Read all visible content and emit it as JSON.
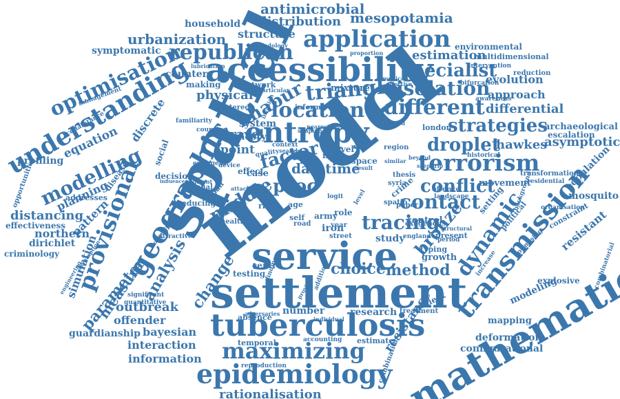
{
  "colors": {
    "word": "#3b77ad",
    "background": "#ffffff"
  },
  "words": [
    {
      "text": "model"
    },
    {
      "text": "spatial"
    },
    {
      "text": "settlement"
    },
    {
      "text": "mathematical"
    },
    {
      "text": "service"
    },
    {
      "text": "tuberculosis"
    },
    {
      "text": "accessibility"
    },
    {
      "text": "epidemiology"
    },
    {
      "text": "geographic"
    },
    {
      "text": "entropy"
    },
    {
      "text": "maximizing"
    },
    {
      "text": "application"
    },
    {
      "text": "transmission"
    },
    {
      "text": "understanding"
    },
    {
      "text": "terrorism"
    },
    {
      "text": "provisional"
    },
    {
      "text": "republican"
    },
    {
      "text": "triangle"
    },
    {
      "text": "location"
    },
    {
      "text": "different"
    },
    {
      "text": "dynamic"
    },
    {
      "text": "optimisation"
    },
    {
      "text": "modelling"
    },
    {
      "text": "tracing"
    },
    {
      "text": "contact"
    },
    {
      "text": "isolation"
    },
    {
      "text": "specialist"
    },
    {
      "text": "strategies"
    },
    {
      "text": "droplet"
    },
    {
      "text": "conflict"
    },
    {
      "text": "factor"
    },
    {
      "text": "khabur"
    },
    {
      "text": "middle"
    },
    {
      "text": "proc"
    },
    {
      "text": "datatime"
    },
    {
      "text": "bronze"
    },
    {
      "text": "parameter"
    },
    {
      "text": "analysis"
    },
    {
      "text": "measure"
    },
    {
      "text": "change"
    },
    {
      "text": "choice"
    },
    {
      "text": "method"
    },
    {
      "text": "distribution"
    },
    {
      "text": "antimicrobial"
    },
    {
      "text": "mesopotamia"
    },
    {
      "text": "urbanization"
    },
    {
      "text": "structure"
    },
    {
      "text": "estimation"
    },
    {
      "text": "household"
    },
    {
      "text": "symptomatic"
    },
    {
      "text": "environmental"
    },
    {
      "text": "multidimensional"
    },
    {
      "text": "physical"
    },
    {
      "text": "travel"
    },
    {
      "text": "point"
    },
    {
      "text": "differential"
    },
    {
      "text": "archaeological"
    },
    {
      "text": "asymptotic"
    },
    {
      "text": "hawkes"
    },
    {
      "text": "escalation"
    },
    {
      "text": "evolution"
    },
    {
      "text": "approach"
    },
    {
      "text": "distancing"
    },
    {
      "text": "planning"
    },
    {
      "text": "pattern"
    },
    {
      "text": "northern"
    },
    {
      "text": "effectiveness"
    },
    {
      "text": "dirichlet"
    },
    {
      "text": "criminology"
    },
    {
      "text": "simulation"
    },
    {
      "text": "outbreak"
    },
    {
      "text": "offender"
    },
    {
      "text": "guardianship"
    },
    {
      "text": "bayesian"
    },
    {
      "text": "interaction"
    },
    {
      "text": "information"
    },
    {
      "text": "rationalisation"
    },
    {
      "text": "configurational"
    },
    {
      "text": "deformation"
    },
    {
      "text": "mapping"
    },
    {
      "text": "modeling"
    },
    {
      "text": "explosive"
    },
    {
      "text": "resistant"
    },
    {
      "text": "resistance"
    },
    {
      "text": "mosquito"
    },
    {
      "text": "population"
    },
    {
      "text": "growth"
    },
    {
      "text": "study"
    },
    {
      "text": "testing"
    },
    {
      "text": "number"
    },
    {
      "text": "research"
    },
    {
      "text": "centre"
    },
    {
      "text": "iron"
    },
    {
      "text": "army"
    },
    {
      "text": "irish"
    },
    {
      "text": "case"
    },
    {
      "text": "equation"
    },
    {
      "text": "discrete"
    },
    {
      "text": "profiling"
    },
    {
      "text": "counter"
    },
    {
      "text": "making"
    },
    {
      "text": "network"
    },
    {
      "text": "mixture"
    },
    {
      "text": "system"
    },
    {
      "text": "theory"
    },
    {
      "text": "more"
    },
    {
      "text": "control"
    },
    {
      "text": "setting"
    },
    {
      "text": "movement"
    },
    {
      "text": "transformation"
    },
    {
      "text": "present"
    },
    {
      "text": "period"
    },
    {
      "text": "typing"
    },
    {
      "text": "temporal"
    },
    {
      "text": "estimate"
    },
    {
      "text": "patient"
    },
    {
      "text": "treatment"
    },
    {
      "text": "absence"
    },
    {
      "text": "adversaries"
    },
    {
      "text": "accounting"
    },
    {
      "text": "reproduction"
    },
    {
      "text": "combination"
    },
    {
      "text": "decision"
    },
    {
      "text": "social"
    },
    {
      "text": "disease"
    },
    {
      "text": "addresses"
    },
    {
      "text": "reducing"
    },
    {
      "text": "urban"
    },
    {
      "text": "risk"
    },
    {
      "text": "age"
    },
    {
      "text": "health"
    },
    {
      "text": "role"
    },
    {
      "text": "paper"
    },
    {
      "text": "year"
    },
    {
      "text": "street"
    },
    {
      "text": "england"
    },
    {
      "text": "london"
    },
    {
      "text": "region"
    },
    {
      "text": "thesis"
    },
    {
      "text": "syria"
    },
    {
      "text": "crime"
    },
    {
      "text": "novel"
    },
    {
      "text": "inform"
    },
    {
      "text": "effect"
    },
    {
      "text": "clinic"
    },
    {
      "text": "attractive"
    },
    {
      "text": "opportunities"
    },
    {
      "text": "management"
    },
    {
      "text": "acquaintance"
    },
    {
      "text": "familiarity"
    },
    {
      "text": "lubrication"
    },
    {
      "text": "methodology"
    },
    {
      "text": "proportion"
    },
    {
      "text": "intervention"
    },
    {
      "text": "bifurcation"
    },
    {
      "text": "reduction"
    },
    {
      "text": "awareness"
    },
    {
      "text": "clustered"
    },
    {
      "text": "particular"
    },
    {
      "text": "observed"
    },
    {
      "text": "historical"
    },
    {
      "text": "residential"
    },
    {
      "text": "organisation"
    },
    {
      "text": "constraint"
    },
    {
      "text": "combinatorial"
    },
    {
      "text": "political"
    },
    {
      "text": "optimising"
    },
    {
      "text": "increase"
    },
    {
      "text": "significant"
    },
    {
      "text": "quantitative"
    },
    {
      "text": "engineering"
    },
    {
      "text": "assumption"
    },
    {
      "text": "uncertainty"
    },
    {
      "text": "counting"
    },
    {
      "text": "segment"
    },
    {
      "text": "manual"
    },
    {
      "text": "influence"
    },
    {
      "text": "emergent"
    },
    {
      "text": "device"
    },
    {
      "text": "quality"
    },
    {
      "text": "search"
    },
    {
      "text": "space"
    },
    {
      "text": "result"
    },
    {
      "text": "exogenous"
    },
    {
      "text": "structural"
    },
    {
      "text": "offence"
    },
    {
      "text": "landscape"
    },
    {
      "text": "scenario"
    },
    {
      "text": "context"
    },
    {
      "text": "medical"
    },
    {
      "text": "effective"
    },
    {
      "text": "invasion"
    },
    {
      "text": "shaping"
    },
    {
      "text": "nearest"
    },
    {
      "text": "beyond"
    },
    {
      "text": "similar"
    },
    {
      "text": "attack"
    },
    {
      "text": "spatio"
    },
    {
      "text": "logit"
    },
    {
      "text": "level"
    },
    {
      "text": "self"
    },
    {
      "text": "road"
    },
    {
      "text": "addition"
    },
    {
      "text": "finding"
    },
    {
      "text": "individual"
    },
    {
      "text": "provide"
    },
    {
      "text": "background"
    }
  ]
}
